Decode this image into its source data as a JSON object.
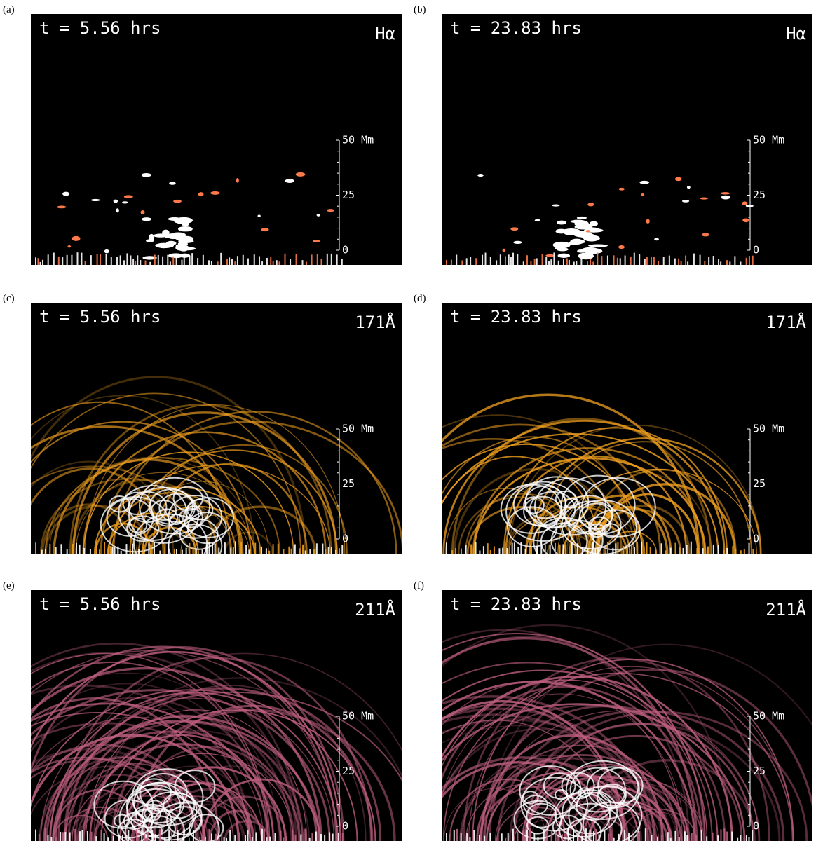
{
  "panels": [
    {
      "label": "(a)",
      "time": "t = 5.56 hrs",
      "channel": "Hα",
      "scale": [
        "50 Mm",
        "25",
        "0"
      ],
      "color": "#ff7a4a"
    },
    {
      "label": "(b)",
      "time": "t = 23.83 hrs",
      "channel": "Hα",
      "scale": [
        "50 Mm",
        "25",
        "0"
      ],
      "color": "#ff7a4a"
    },
    {
      "label": "(c)",
      "time": "t = 5.56 hrs",
      "channel": "171Å",
      "scale": [
        "50 Mm",
        "25",
        "0"
      ],
      "color": "#f0a020"
    },
    {
      "label": "(d)",
      "time": "t = 23.83 hrs",
      "channel": "171Å",
      "scale": [
        "50 Mm",
        "25",
        "0"
      ],
      "color": "#f0a020"
    },
    {
      "label": "(e)",
      "time": "t = 5.56 hrs",
      "channel": "211Å",
      "scale": [
        "50 Mm",
        "25",
        "0"
      ],
      "color": "#c06080"
    },
    {
      "label": "(f)",
      "time": "t = 23.83 hrs",
      "channel": "211Å",
      "scale": [
        "50 Mm",
        "25",
        "0"
      ],
      "color": "#c06080"
    }
  ]
}
